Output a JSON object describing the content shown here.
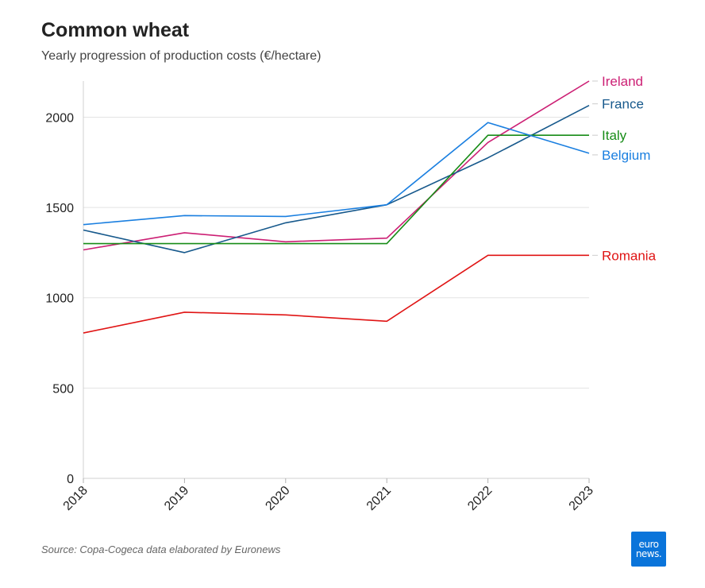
{
  "header": {
    "title": "Common wheat",
    "subtitle": "Yearly progression of production costs (€/hectare)"
  },
  "footer": {
    "source": "Source: Copa-Cogeca data elaborated by Euronews",
    "logo_line1": "euro",
    "logo_line2": "news."
  },
  "chart_data": {
    "type": "line",
    "x": [
      "2018",
      "2019",
      "2020",
      "2021",
      "2022",
      "2023"
    ],
    "ylim": [
      0,
      2200
    ],
    "yticks": [
      0,
      500,
      1000,
      1500,
      2000
    ],
    "grid": true,
    "legend": "inline-right",
    "series": [
      {
        "name": "Ireland",
        "color": "#cc1f74",
        "values": [
          1265,
          1360,
          1310,
          1330,
          1860,
          2200
        ]
      },
      {
        "name": "France",
        "color": "#17598c",
        "values": [
          1375,
          1250,
          1415,
          1515,
          1775,
          2065
        ]
      },
      {
        "name": "Italy",
        "color": "#178c17",
        "values": [
          1300,
          1300,
          1300,
          1300,
          1900,
          1900
        ]
      },
      {
        "name": "Belgium",
        "color": "#1a7fe0",
        "values": [
          1405,
          1455,
          1450,
          1515,
          1970,
          1800
        ]
      },
      {
        "name": "Romania",
        "color": "#e01414",
        "values": [
          805,
          920,
          905,
          870,
          1235,
          1235
        ]
      }
    ]
  }
}
